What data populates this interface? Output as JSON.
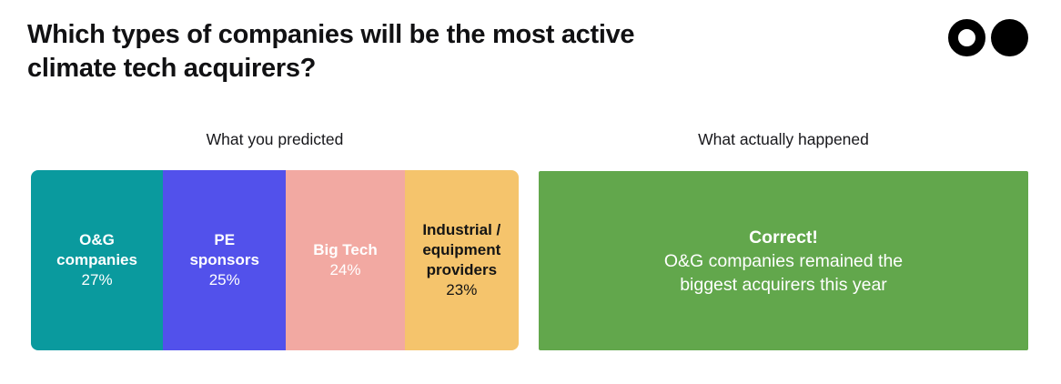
{
  "header": {
    "title": "Which types of companies will be the most active\nclimate tech acquirers?",
    "logo_icons": [
      "ring-circle",
      "filled-circle"
    ]
  },
  "predicted": {
    "heading": "What you predicted",
    "segments": [
      {
        "label": "O&G\ncompanies",
        "value_label": "27%",
        "pct": 27,
        "color": "#0A9A9E",
        "text_color": "#FFFFFF"
      },
      {
        "label": "PE\nsponsors",
        "value_label": "25%",
        "pct": 25,
        "color": "#5251EB",
        "text_color": "#FFFFFF"
      },
      {
        "label": "Big Tech",
        "value_label": "24%",
        "pct": 24,
        "color": "#F2A9A2",
        "text_color": "#FFFFFF"
      },
      {
        "label": "Industrial /\nequipment\nproviders",
        "value_label": "23%",
        "pct": 23,
        "color": "#F5C46C",
        "text_color": "#141414"
      }
    ]
  },
  "actual": {
    "heading": "What actually happened",
    "color": "#62A74C",
    "result_title": "Correct!",
    "result_body": "O&G companies remained the\nbiggest acquirers this year"
  },
  "chart_data": {
    "type": "bar",
    "orientation": "horizontal-stacked",
    "title": "Which types of companies will be the most active climate tech acquirers?",
    "categories": [
      "O&G companies",
      "PE sponsors",
      "Big Tech",
      "Industrial / equipment providers"
    ],
    "values": [
      27,
      25,
      24,
      23
    ],
    "unit": "%",
    "panel_labels": [
      "What you predicted",
      "What actually happened"
    ],
    "series_colors": [
      "#0A9A9E",
      "#5251EB",
      "#F2A9A2",
      "#F5C46C"
    ],
    "outcome": {
      "verdict": "Correct!",
      "note": "O&G companies remained the biggest acquirers this year",
      "color": "#62A74C"
    },
    "legend_position": "none",
    "grid": false
  }
}
